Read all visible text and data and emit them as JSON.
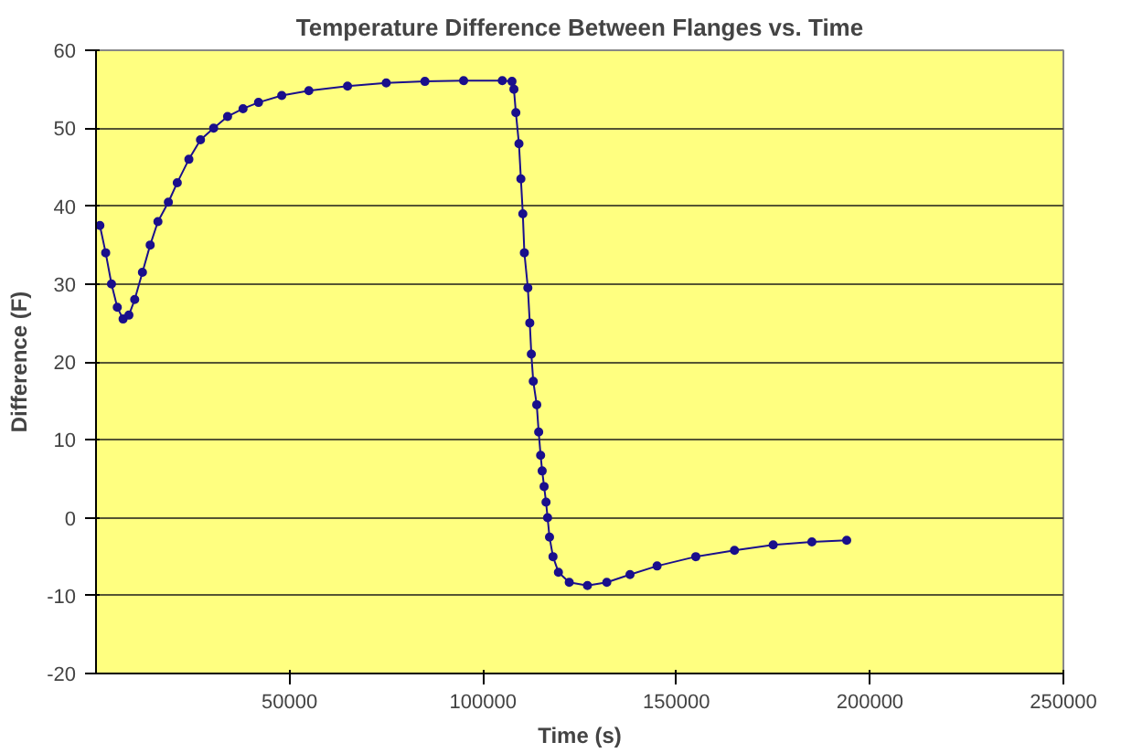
{
  "chart_data": {
    "type": "line",
    "title": "Temperature Difference Between Flanges vs. Time",
    "xlabel": "Time (s)",
    "ylabel": "Difference (F)",
    "xlim": [
      0,
      250000
    ],
    "xticks": [
      50000,
      100000,
      150000,
      200000,
      250000
    ],
    "ylim": [
      -20,
      60
    ],
    "yticks": [
      -20,
      -10,
      0,
      10,
      20,
      30,
      40,
      50,
      60
    ],
    "grid": "y",
    "marker": "circle",
    "line_style": "solid",
    "series": [
      {
        "color": "#1a0f8c",
        "x": [
          1000,
          2500,
          4000,
          5500,
          7000,
          8500,
          10000,
          12000,
          14000,
          16000,
          18700,
          21000,
          24000,
          27000,
          30400,
          34000,
          38000,
          42000,
          48000,
          55000,
          65000,
          75000,
          85000,
          95000,
          105000,
          107500,
          108000,
          108500,
          109300,
          109800,
          110300,
          110700,
          111600,
          112100,
          112500,
          113000,
          113900,
          114400,
          114900,
          115300,
          115800,
          116300,
          116700,
          117200,
          118100,
          119500,
          122300,
          127000,
          132000,
          138000,
          145000,
          155000,
          165000,
          175000,
          185000,
          194000
        ],
        "values": [
          37.5,
          34,
          30,
          27,
          25.5,
          26,
          28,
          31.5,
          35,
          38,
          40.5,
          43,
          46,
          48.5,
          50,
          51.5,
          52.5,
          53.3,
          54.2,
          54.8,
          55.4,
          55.8,
          56,
          56.1,
          56.1,
          56,
          55,
          52,
          48,
          43.5,
          39,
          34,
          29.5,
          25,
          21,
          17.5,
          14.5,
          11,
          8,
          6,
          4,
          2,
          0,
          -2.5,
          -5,
          -7,
          -8.3,
          -8.7,
          -8.3,
          -7.3,
          -6.2,
          -5,
          -4.2,
          -3.5,
          -3.1,
          -2.9
        ]
      }
    ]
  }
}
